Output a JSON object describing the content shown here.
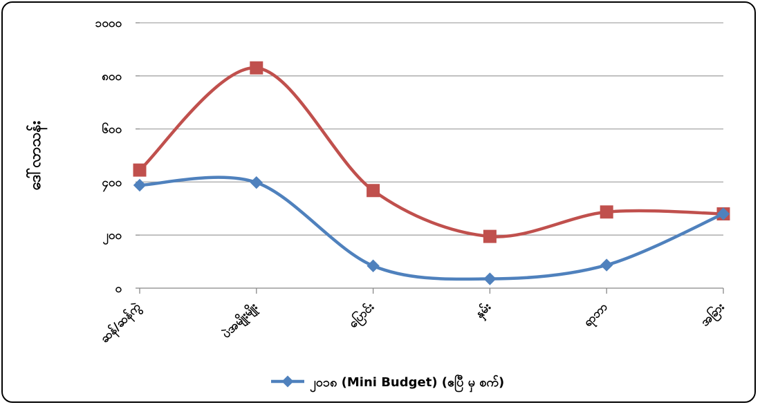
{
  "chart_data": {
    "type": "line",
    "title": "",
    "xlabel": "",
    "ylabel": "ဒေါ်လာသန်း",
    "categories": [
      "ဆန်/ဆန်ကွဲ",
      "ပဲအမျိုးမျိုး",
      "ပြောင်း",
      "နှမ်း",
      "ရာဘာ",
      "အခြား"
    ],
    "y_tick_labels": [
      "၀",
      "၂၀၀",
      "၄၀၀",
      "၆၀၀",
      "၈၀၀",
      "၁၀၀၀"
    ],
    "ylim": [
      0,
      1000
    ],
    "grid": true,
    "smooth": true,
    "series": [
      {
        "name": "",
        "color": "#C0504D",
        "marker": "square",
        "values": [
          445,
          830,
          368,
          195,
          287,
          280
        ]
      },
      {
        "name": "၂၀၁၈ (Mini Budget) (ဧပြီ မှ စက်)",
        "color": "#4F81BD",
        "marker": "diamond",
        "values": [
          388,
          398,
          84,
          35,
          87,
          280
        ]
      }
    ],
    "legend": "bottom"
  }
}
